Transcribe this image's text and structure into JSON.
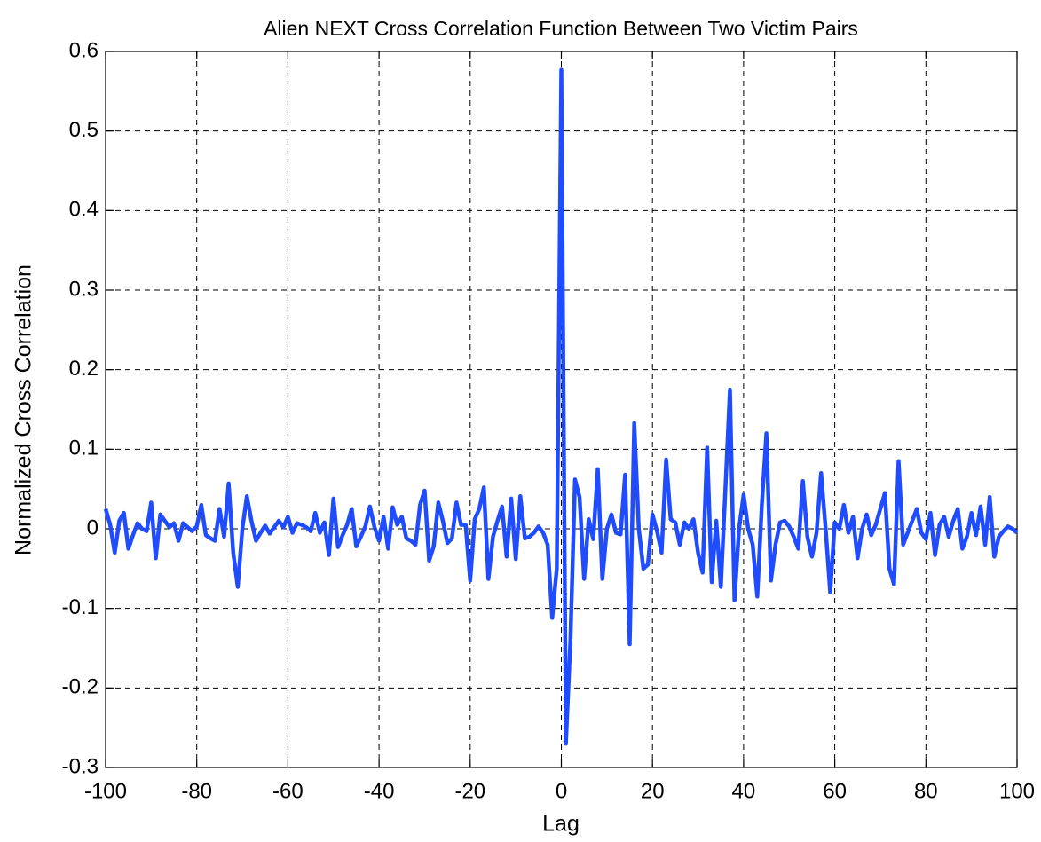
{
  "chart_data": {
    "type": "line",
    "title": "Alien NEXT Cross Correlation Function Between Two Victim Pairs",
    "x_label": "Lag",
    "y_label": "Normalized Cross Correlation",
    "x": [
      -100,
      -99,
      -98,
      -97,
      -96,
      -95,
      -94,
      -93,
      -92,
      -91,
      -90,
      -89,
      -88,
      -87,
      -86,
      -85,
      -84,
      -83,
      -82,
      -81,
      -80,
      -79,
      -78,
      -77,
      -76,
      -75,
      -74,
      -73,
      -72,
      -71,
      -70,
      -69,
      -68,
      -67,
      -66,
      -65,
      -64,
      -63,
      -62,
      -61,
      -60,
      -59,
      -58,
      -57,
      -56,
      -55,
      -54,
      -53,
      -52,
      -51,
      -50,
      -49,
      -48,
      -47,
      -46,
      -45,
      -44,
      -43,
      -42,
      -41,
      -40,
      -39,
      -38,
      -37,
      -36,
      -35,
      -34,
      -33,
      -32,
      -31,
      -30,
      -29,
      -28,
      -27,
      -26,
      -25,
      -24,
      -23,
      -22,
      -21,
      -20,
      -19,
      -18,
      -17,
      -16,
      -15,
      -14,
      -13,
      -12,
      -11,
      -10,
      -9,
      -8,
      -7,
      -6,
      -5,
      -4,
      -3,
      -2,
      -1,
      0,
      1,
      2,
      3,
      4,
      5,
      6,
      7,
      8,
      9,
      10,
      11,
      12,
      13,
      14,
      15,
      16,
      17,
      18,
      19,
      20,
      21,
      22,
      23,
      24,
      25,
      26,
      27,
      28,
      29,
      30,
      31,
      32,
      33,
      34,
      35,
      36,
      37,
      38,
      39,
      40,
      41,
      42,
      43,
      44,
      45,
      46,
      47,
      48,
      49,
      50,
      51,
      52,
      53,
      54,
      55,
      56,
      57,
      58,
      59,
      60,
      61,
      62,
      63,
      64,
      65,
      66,
      67,
      68,
      69,
      70,
      71,
      72,
      73,
      74,
      75,
      76,
      77,
      78,
      79,
      80,
      81,
      82,
      83,
      84,
      85,
      86,
      87,
      88,
      89,
      90,
      91,
      92,
      93,
      94,
      95,
      96,
      97,
      98,
      99,
      100
    ],
    "series": [
      {
        "color": "#1f4cff",
        "values": [
          0.025,
          0.005,
          -0.03,
          0.01,
          0.02,
          -0.025,
          -0.008,
          0.007,
          0.0,
          -0.003,
          0.033,
          -0.037,
          0.018,
          0.01,
          0.002,
          0.007,
          -0.015,
          0.007,
          0.002,
          -0.003,
          0.003,
          0.03,
          -0.008,
          -0.012,
          -0.015,
          0.025,
          -0.01,
          0.057,
          -0.03,
          -0.073,
          0.0,
          0.041,
          0.01,
          -0.015,
          -0.005,
          0.004,
          -0.006,
          0.002,
          0.01,
          0.002,
          0.015,
          -0.005,
          0.007,
          0.005,
          0.002,
          -0.003,
          0.02,
          -0.005,
          0.008,
          -0.033,
          0.038,
          -0.023,
          -0.008,
          0.005,
          0.025,
          -0.022,
          -0.01,
          0.003,
          0.028,
          0.002,
          -0.015,
          0.015,
          -0.025,
          0.027,
          0.005,
          0.015,
          -0.012,
          -0.015,
          -0.02,
          0.03,
          0.048,
          -0.04,
          -0.022,
          0.033,
          0.01,
          -0.018,
          -0.012,
          0.033,
          0.005,
          0.005,
          -0.065,
          0.012,
          0.025,
          0.052,
          -0.063,
          -0.01,
          0.01,
          0.028,
          -0.035,
          0.038,
          -0.038,
          0.041,
          -0.012,
          -0.01,
          -0.005,
          0.003,
          -0.005,
          -0.02,
          -0.112,
          -0.05,
          0.577,
          -0.27,
          -0.14,
          0.062,
          0.04,
          -0.063,
          0.012,
          -0.013,
          0.075,
          -0.063,
          0.0,
          0.018,
          -0.005,
          -0.007,
          0.068,
          -0.145,
          0.133,
          0.0,
          -0.05,
          -0.045,
          0.018,
          -0.003,
          -0.03,
          0.087,
          0.012,
          0.008,
          -0.02,
          0.008,
          0.0,
          0.012,
          -0.03,
          -0.055,
          0.102,
          -0.067,
          0.01,
          -0.073,
          0.05,
          0.175,
          -0.09,
          0.0,
          0.043,
          0.0,
          -0.02,
          -0.085,
          0.03,
          0.12,
          -0.065,
          -0.02,
          0.008,
          0.01,
          0.003,
          -0.01,
          -0.025,
          0.06,
          -0.01,
          -0.035,
          -0.005,
          0.07,
          0.0,
          -0.08,
          0.008,
          0.0,
          0.03,
          -0.005,
          0.015,
          -0.037,
          0.0,
          0.018,
          -0.008,
          0.005,
          0.025,
          0.045,
          -0.05,
          -0.07,
          0.085,
          -0.02,
          -0.005,
          0.01,
          0.025,
          -0.005,
          -0.013,
          0.02,
          -0.033,
          0.005,
          0.015,
          -0.01,
          0.01,
          0.025,
          -0.025,
          -0.01,
          0.02,
          -0.008,
          0.028,
          -0.02,
          0.04,
          -0.035,
          -0.01,
          -0.003,
          0.003,
          0.0,
          -0.005
        ]
      }
    ],
    "xlim": [
      -100,
      100
    ],
    "xticks": [
      -100,
      -80,
      -60,
      -40,
      -20,
      0,
      20,
      40,
      60,
      80,
      100
    ],
    "ylim": [
      -0.3,
      0.6
    ],
    "yticks": [
      -0.3,
      -0.2,
      -0.1,
      0,
      0.1,
      0.2,
      0.3,
      0.4,
      0.5,
      0.6
    ],
    "grid": true
  }
}
